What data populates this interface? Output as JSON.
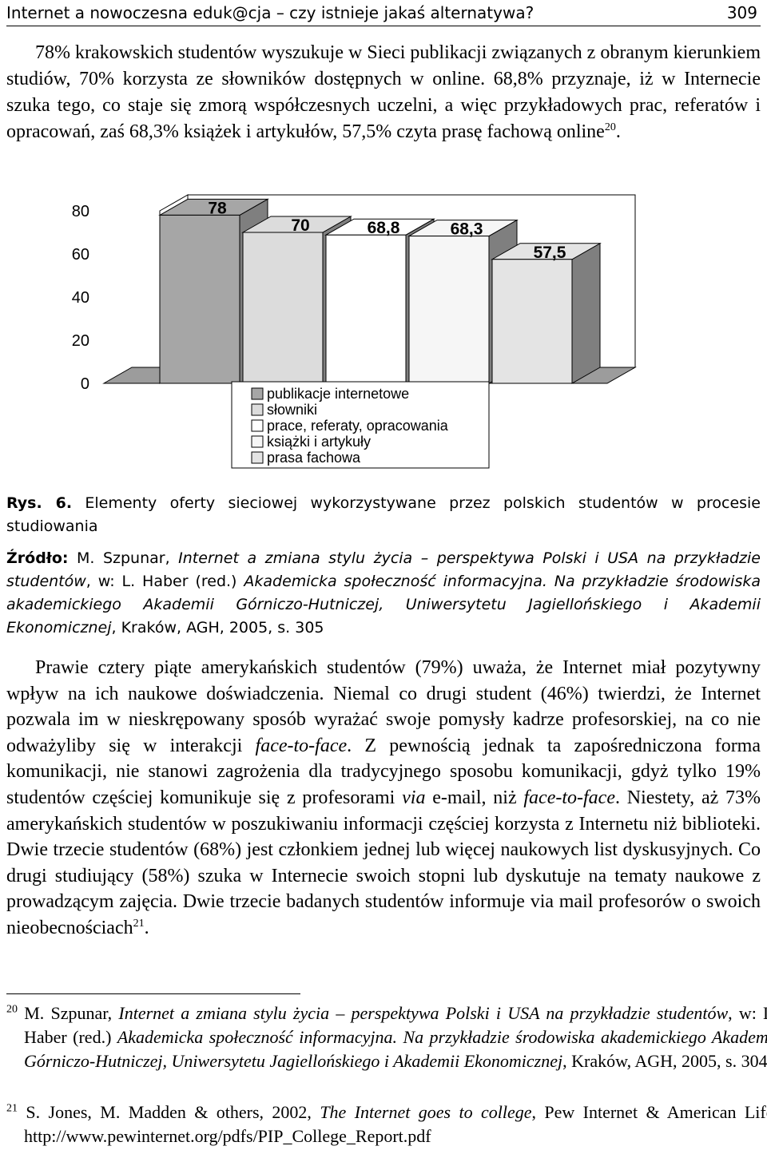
{
  "header": {
    "title": "Internet a nowoczesna eduk@cja – czy istnieje jakaś alternatywa?",
    "page": "309"
  },
  "paragraphs": [
    [
      "78% krakowskich studentów wyszukuje w Sieci publikacji związanych z obranym kierunkiem studiów, 70% korzysta ze słowników dostępnych w online. 68,8% przyznaje, iż w Internecie szuka tego, co staje się zmorą współczesnych uczelni, a więc przykładowych prac, referatów i opracowań, zaś 68,3% książek i artykułów, 57,5% czyta prasę fachową online",
      "20",
      "."
    ],
    [
      "Prawie cztery piąte amerykańskich studentów (79%) uważa, że Internet miał pozytywny wpływ na ich naukowe doświadczenia. Niemal co drugi student (46%) twierdzi, że Internet pozwala im w nieskrępowany sposób wyrażać swoje pomysły kadrze profesorskiej, na co nie odważyliby się w interakcji ",
      "face-to-face",
      ". Z pewnością jednak ta zapośredniczona forma komunikacji, nie stanowi zagrożenia dla tradycyjnego sposobu komunikacji, gdyż tylko 19% studentów częściej komunikuje się z profesorami ",
      "via",
      " e-mail, niż ",
      "face-to-face",
      ". Niestety, aż 73% amerykańskich studentów w poszukiwaniu informacji częściej korzysta z Internetu niż biblioteki. Dwie trzecie studentów (68%) jest członkiem jednej lub więcej naukowych list dyskusyjnych. Co drugi studiujący (58%) szuka w Internecie swoich stopni lub dyskutuje na tematy naukowe z prowadzącym zajęcia. Dwie trzecie badanych studentów informuje via mail profesorów o swoich nieobecnościach",
      "21",
      "."
    ]
  ],
  "chart_data": {
    "type": "bar3d",
    "series": [
      {
        "name": "publikacje internetowe",
        "color": "#a6a6a6",
        "values": [
          78
        ],
        "value_labels": [
          "78"
        ]
      },
      {
        "name": "słowniki",
        "color": "#dcdcdc",
        "values": [
          70
        ],
        "value_labels": [
          "70"
        ]
      },
      {
        "name": "prace, referaty, opracowania",
        "color": "#ffffff",
        "values": [
          68.8
        ],
        "value_labels": [
          "68,8"
        ]
      },
      {
        "name": "książki i artykuły",
        "color": "#f6f6f6",
        "values": [
          68.3
        ],
        "value_labels": [
          "68,3"
        ]
      },
      {
        "name": "prasa fachowa",
        "color": "#e4e4e4",
        "values": [
          57.5
        ],
        "value_labels": [
          "57,5"
        ]
      }
    ],
    "ylim": [
      0,
      80
    ],
    "yticks": [
      0,
      20,
      40,
      60,
      80
    ],
    "legend": "bottom"
  },
  "caption": {
    "label": "Rys. 6.",
    "text": "Elementy oferty sieciowej wykorzystywane przez polskich studentów w procesie studiowania"
  },
  "source": [
    "Źródło:",
    " M. Szpunar, ",
    "Internet a zmiana stylu życia – perspektywa Polski i USA na przykładzie studentów",
    ", w: L. Haber (red.) ",
    "Akademicka społeczność informacyjna. Na przykładzie środowiska akademickiego Akademii Górniczo-Hutniczej, Uniwersytetu Jagiellońskiego i Akademii Ekonomicznej",
    ", Kraków, AGH, 2005, s. 305"
  ],
  "footnotes": [
    [
      "20",
      "M. Szpunar, ",
      "Internet a zmiana stylu życia – perspektywa Polski i USA na przykładzie studentów",
      ", w: L. Haber (red.) ",
      "Akademicka społeczność informacyjna. Na przykładzie środowiska akademickiego Akademii Górniczo-Hutniczej, Uniwersytetu Jagiellońskiego i Akademii Ekonomicznej",
      ", Kraków, AGH, 2005, s. 304."
    ],
    [
      "21",
      "S. Jones, M. Madden & others, 2002, ",
      "The Internet goes to college",
      ", Pew Internet & American Life, http://www.pewinternet.org/pdfs/PIP_College_Report.pdf"
    ]
  ]
}
